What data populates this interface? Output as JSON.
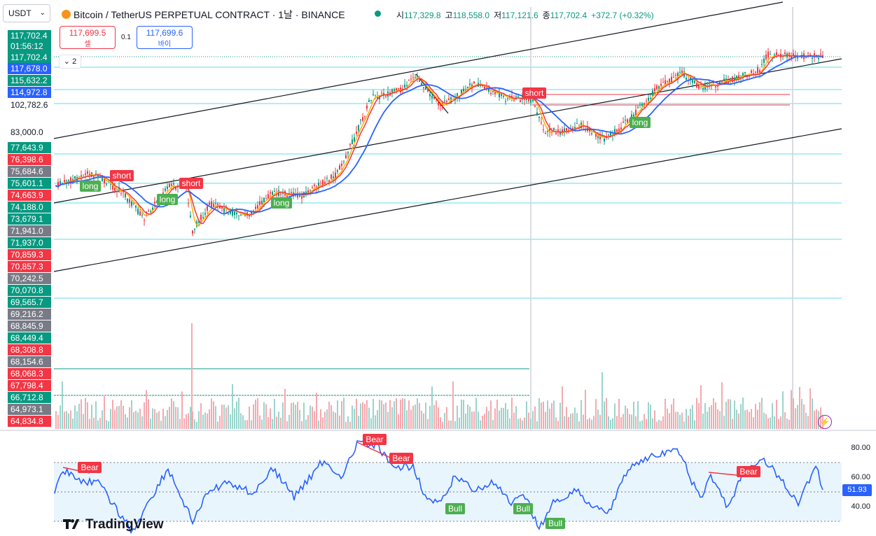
{
  "header": {
    "quote_currency": "USDT",
    "title": "Bitcoin / TetherUS PERPETUAL CONTRACT · 1날 · BINANCE",
    "ohlc": [
      {
        "k": "시",
        "v": "117,329.8"
      },
      {
        "k": "고",
        "v": "118,558.0"
      },
      {
        "k": "저",
        "v": "117,121.6"
      },
      {
        "k": "종",
        "v": "117,702.4"
      }
    ],
    "change": "+372.7 (+0.32%)"
  },
  "trade": {
    "sell_price": "117,699.5",
    "sell_label": "셀",
    "spread": "0.1",
    "buy_price": "117,699.6",
    "buy_label": "바이",
    "indicators_count": "2"
  },
  "left_scale": [
    {
      "v": "117,702.4",
      "c": "#089981"
    },
    {
      "v": "01:56:12",
      "c": "#089981"
    },
    {
      "v": "117,702.4",
      "c": "#089981"
    },
    {
      "v": "117,678.0",
      "c": "#2962ff"
    },
    {
      "v": "115,632.2",
      "c": "#089981"
    },
    {
      "v": "114,972.8",
      "c": "#2962ff"
    },
    {
      "v": "102,782.6",
      "c": ""
    },
    {
      "v": "83,000.0",
      "c": ""
    },
    {
      "v": "77,643.9",
      "c": "#089981"
    },
    {
      "v": "76,398.6",
      "c": "#f23645"
    },
    {
      "v": "75,684.6",
      "c": "#787b86"
    },
    {
      "v": "75,601.1",
      "c": "#089981"
    },
    {
      "v": "74,663.9",
      "c": "#f23645"
    },
    {
      "v": "74,188.0",
      "c": "#089981"
    },
    {
      "v": "73,679.1",
      "c": "#089981"
    },
    {
      "v": "71,941.0",
      "c": "#787b86"
    },
    {
      "v": "71,937.0",
      "c": "#089981"
    },
    {
      "v": "70,859.3",
      "c": "#f23645"
    },
    {
      "v": "70,857.3",
      "c": "#f23645"
    },
    {
      "v": "70,242.5",
      "c": "#787b86"
    },
    {
      "v": "70,070.8",
      "c": "#089981"
    },
    {
      "v": "69,565.7",
      "c": "#089981"
    },
    {
      "v": "69,216.2",
      "c": "#787b86"
    },
    {
      "v": "68,845.9",
      "c": "#787b86"
    },
    {
      "v": "68,449.4",
      "c": "#089981"
    },
    {
      "v": "68,308.8",
      "c": "#f23645"
    },
    {
      "v": "68,154.6",
      "c": "#787b86"
    },
    {
      "v": "68,068.3",
      "c": "#f23645"
    },
    {
      "v": "67,798.4",
      "c": "#f23645"
    },
    {
      "v": "66,712.8",
      "c": "#089981"
    },
    {
      "v": "64,973.1",
      "c": "#787b86"
    },
    {
      "v": "64,834.8",
      "c": "#f23645"
    }
  ],
  "signals": [
    {
      "text": "long",
      "c": "#4caf50"
    },
    {
      "text": "short",
      "c": "#f23645"
    },
    {
      "text": "long",
      "c": "#4caf50"
    },
    {
      "text": "short",
      "c": "#f23645"
    },
    {
      "text": "long",
      "c": "#4caf50"
    },
    {
      "text": "short",
      "c": "#f23645"
    },
    {
      "text": "long",
      "c": "#4caf50"
    }
  ],
  "rsi": {
    "axis": [
      "80.00",
      "60.00",
      "40.00"
    ],
    "current": "51.93",
    "divergences": [
      {
        "text": "Bear",
        "c": "#f23645"
      },
      {
        "text": "Bear",
        "c": "#f23645"
      },
      {
        "text": "Bear",
        "c": "#f23645"
      },
      {
        "text": "Bull",
        "c": "#4caf50"
      },
      {
        "text": "Bull",
        "c": "#4caf50"
      },
      {
        "text": "Bull",
        "c": "#4caf50"
      },
      {
        "text": "Bear",
        "c": "#f23645"
      }
    ]
  },
  "brand": "TradingView"
}
